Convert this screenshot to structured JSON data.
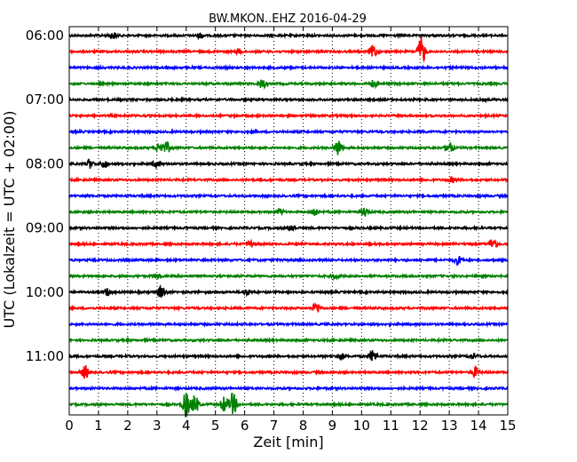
{
  "chart_data": {
    "type": "line",
    "title": "BW.MKON..EHZ 2016-04-29",
    "xlabel": "Zeit  [min]",
    "ylabel": "UTC (Lokalzeit = UTC + 02:00)",
    "xlim": [
      0,
      15
    ],
    "x_ticks": [
      "0",
      "1",
      "2",
      "3",
      "4",
      "5",
      "6",
      "7",
      "8",
      "9",
      "10",
      "11",
      "12",
      "13",
      "14",
      "15"
    ],
    "y_ticks": [
      {
        "label": "06:00",
        "trace": 0
      },
      {
        "label": "07:00",
        "trace": 4
      },
      {
        "label": "08:00",
        "trace": 8
      },
      {
        "label": "09:00",
        "trace": 12
      },
      {
        "label": "10:00",
        "trace": 16
      },
      {
        "label": "11:00",
        "trace": 20
      }
    ],
    "grid": "vertical dotted",
    "colors": [
      "#000000",
      "#ff0000",
      "#0000ff",
      "#008000"
    ],
    "series": [
      {
        "start": "06:00",
        "color": "#000000",
        "events": [
          [
            1.5,
            0.4
          ],
          [
            4.5,
            0.3
          ]
        ]
      },
      {
        "start": "06:15",
        "color": "#ff0000",
        "events": [
          [
            5.8,
            0.3
          ],
          [
            10.4,
            0.8
          ],
          [
            12.05,
            1.8
          ]
        ]
      },
      {
        "start": "06:30",
        "color": "#0000ff",
        "events": []
      },
      {
        "start": "06:45",
        "color": "#008000",
        "events": [
          [
            6.6,
            0.6
          ],
          [
            10.4,
            0.4
          ]
        ]
      },
      {
        "start": "07:00",
        "color": "#000000",
        "events": []
      },
      {
        "start": "07:15",
        "color": "#ff0000",
        "events": []
      },
      {
        "start": "07:30",
        "color": "#0000ff",
        "events": []
      },
      {
        "start": "07:45",
        "color": "#008000",
        "events": [
          [
            3.1,
            0.7
          ],
          [
            3.35,
            0.6
          ],
          [
            9.2,
            1.0
          ],
          [
            13.0,
            0.7
          ]
        ]
      },
      {
        "start": "08:00",
        "color": "#000000",
        "events": [
          [
            0.7,
            0.5
          ],
          [
            1.2,
            0.5
          ],
          [
            3.0,
            0.4
          ]
        ]
      },
      {
        "start": "08:15",
        "color": "#ff0000",
        "events": [
          [
            13.1,
            0.3
          ]
        ]
      },
      {
        "start": "08:30",
        "color": "#0000ff",
        "events": []
      },
      {
        "start": "08:45",
        "color": "#008000",
        "events": [
          [
            7.2,
            0.4
          ],
          [
            8.4,
            0.5
          ],
          [
            10.1,
            0.5
          ]
        ]
      },
      {
        "start": "09:00",
        "color": "#000000",
        "events": [
          [
            7.6,
            0.4
          ]
        ]
      },
      {
        "start": "09:15",
        "color": "#ff0000",
        "events": [
          [
            6.2,
            0.4
          ],
          [
            14.5,
            0.7
          ]
        ]
      },
      {
        "start": "09:30",
        "color": "#0000ff",
        "events": [
          [
            13.3,
            0.5
          ]
        ]
      },
      {
        "start": "09:45",
        "color": "#008000",
        "events": [
          [
            3.0,
            0.3
          ],
          [
            9.1,
            0.3
          ]
        ]
      },
      {
        "start": "10:00",
        "color": "#000000",
        "events": [
          [
            1.3,
            0.4
          ],
          [
            3.15,
            0.8
          ],
          [
            6.1,
            0.3
          ]
        ]
      },
      {
        "start": "10:15",
        "color": "#ff0000",
        "events": [
          [
            8.45,
            0.7
          ]
        ]
      },
      {
        "start": "10:30",
        "color": "#0000ff",
        "events": []
      },
      {
        "start": "10:45",
        "color": "#008000",
        "events": []
      },
      {
        "start": "11:00",
        "color": "#000000",
        "events": [
          [
            9.3,
            0.4
          ],
          [
            10.4,
            0.7
          ],
          [
            13.8,
            0.3
          ]
        ]
      },
      {
        "start": "11:15",
        "color": "#ff0000",
        "events": [
          [
            0.55,
            0.8
          ],
          [
            13.9,
            0.6
          ]
        ]
      },
      {
        "start": "11:30",
        "color": "#0000ff",
        "events": []
      },
      {
        "start": "11:45",
        "color": "#008000",
        "events": [
          [
            4.0,
            1.6
          ],
          [
            4.3,
            1.2
          ],
          [
            5.3,
            1.0
          ],
          [
            5.6,
            1.4
          ]
        ]
      }
    ]
  }
}
